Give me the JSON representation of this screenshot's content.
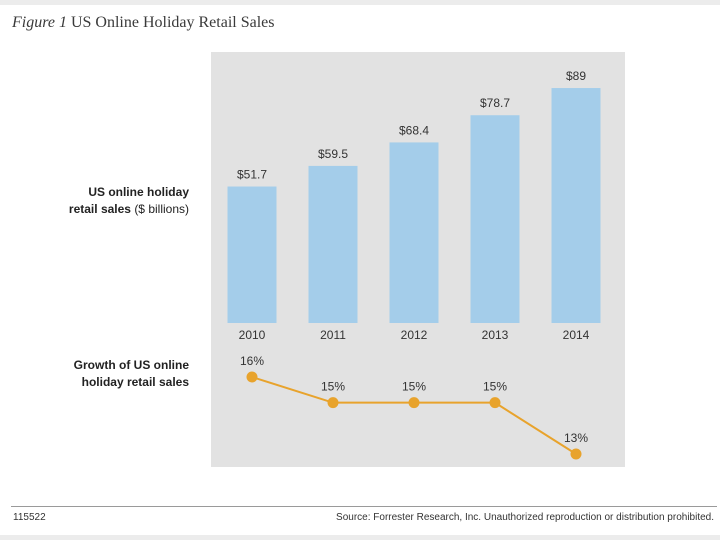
{
  "figure": {
    "number_label": "Figure 1",
    "title": "US Online Holiday Retail Sales"
  },
  "rows": {
    "sales_label_bold_1": "US online holiday",
    "sales_label_bold_2": "retail sales",
    "sales_label_unit": "($ billions)",
    "growth_label_1": "Growth of US online",
    "growth_label_2": "holiday retail sales"
  },
  "footer": {
    "id": "115522",
    "source": "Source: Forrester Research, Inc. Unauthorized reproduction or distribution prohibited."
  },
  "colors": {
    "frame_background": "#ffffff",
    "page_background": "#ececec",
    "panel_background": "#e2e2e2",
    "bar": "#a4cdea",
    "growth_line": "#e8a32c",
    "text": "#333333"
  },
  "chart_data": [
    {
      "type": "bar",
      "categories": [
        "2010",
        "2011",
        "2012",
        "2013",
        "2014"
      ],
      "values": [
        51.7,
        59.5,
        68.4,
        78.7,
        89
      ],
      "value_labels": [
        "$51.7",
        "$59.5",
        "$68.4",
        "$78.7",
        "$89"
      ],
      "ylabel": "US online holiday retail sales ($ billions)",
      "ylim": [
        0,
        100
      ],
      "grid": false,
      "legend": "none"
    },
    {
      "type": "line",
      "x": [
        "2010",
        "2011",
        "2012",
        "2013",
        "2014"
      ],
      "values": [
        16,
        15,
        15,
        15,
        13
      ],
      "value_labels": [
        "16%",
        "15%",
        "15%",
        "15%",
        "13%"
      ],
      "ylabel": "Growth of US online holiday retail sales",
      "ylim": [
        13,
        16
      ],
      "grid": false,
      "legend": "none"
    }
  ]
}
